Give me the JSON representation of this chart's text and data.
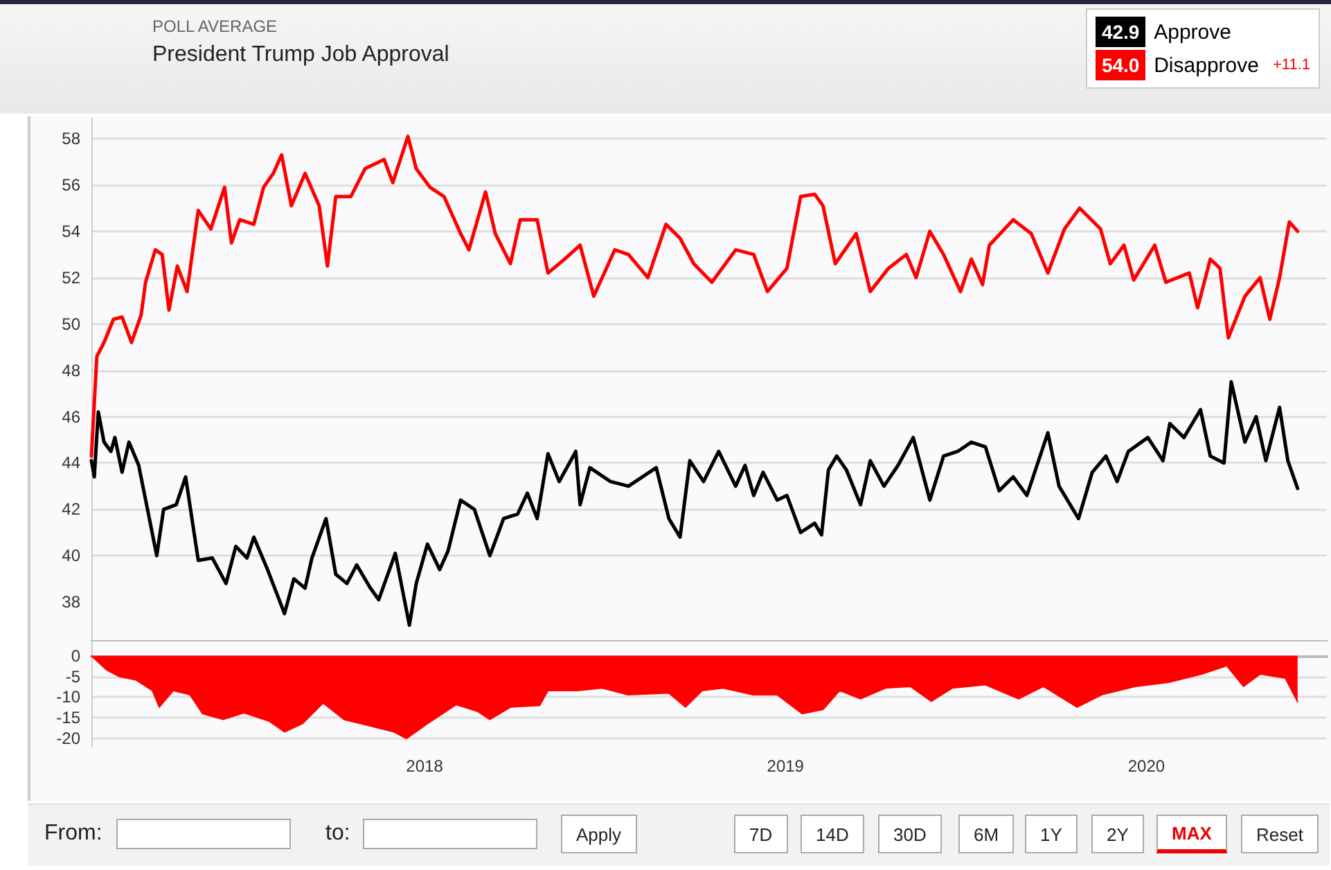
{
  "chart_data": [
    {
      "type": "line",
      "title": "President Trump Job Approval",
      "subtitle": "POLL AVERAGE",
      "annotations": [
        "42.9",
        "54.0",
        "+11.1"
      ],
      "xlim": [
        2017.077,
        2020.5
      ],
      "ylim": [
        36.3,
        58.9
      ],
      "yticks": [
        38,
        40,
        42,
        44,
        46,
        48,
        50,
        52,
        54,
        56,
        58
      ],
      "grid": "y",
      "legend": "top right",
      "tick_labels": "y",
      "line_style": "solid",
      "series": [
        {
          "name": "Approve",
          "color": "#000000",
          "x": [
            2017.077,
            2017.085,
            2017.096,
            2017.112,
            2017.131,
            2017.142,
            2017.162,
            2017.181,
            2017.208,
            2017.235,
            2017.258,
            2017.277,
            2017.312,
            2017.338,
            2017.373,
            2017.412,
            2017.45,
            2017.477,
            2017.508,
            2017.527,
            2017.565,
            2017.612,
            2017.638,
            2017.669,
            2017.688,
            2017.727,
            2017.754,
            2017.785,
            2017.812,
            2017.85,
            2017.873,
            2017.919,
            2017.958,
            2017.977,
            2018.008,
            2018.042,
            2018.065,
            2018.1,
            2018.138,
            2018.181,
            2018.219,
            2018.258,
            2018.285,
            2018.312,
            2018.342,
            2018.373,
            2018.419,
            2018.431,
            2018.458,
            2018.515,
            2018.565,
            2018.642,
            2018.677,
            2018.708,
            2018.735,
            2018.773,
            2018.815,
            2018.862,
            2018.888,
            2018.912,
            2018.938,
            2018.977,
            2019.004,
            2019.042,
            2019.081,
            2019.1,
            2019.119,
            2019.142,
            2019.169,
            2019.208,
            2019.235,
            2019.273,
            2019.312,
            2019.354,
            2019.4,
            2019.438,
            2019.477,
            2019.515,
            2019.554,
            2019.592,
            2019.631,
            2019.669,
            2019.727,
            2019.758,
            2019.812,
            2019.85,
            2019.888,
            2019.919,
            2019.95,
            2020.004,
            2020.046,
            2020.065,
            2020.104,
            2020.15,
            2020.177,
            2020.215,
            2020.235,
            2020.273,
            2020.304,
            2020.331,
            2020.369,
            2020.392,
            2020.419
          ],
          "values": [
            44.1,
            43.4,
            46.2,
            44.9,
            44.5,
            45.1,
            43.6,
            44.9,
            43.9,
            41.8,
            40.0,
            42.0,
            42.2,
            43.4,
            39.8,
            39.9,
            38.8,
            40.4,
            39.9,
            40.8,
            39.4,
            37.5,
            39.0,
            38.6,
            39.9,
            41.6,
            39.2,
            38.8,
            39.6,
            38.6,
            38.1,
            40.1,
            37.0,
            38.8,
            40.5,
            39.4,
            40.2,
            42.4,
            42.0,
            40.0,
            41.6,
            41.8,
            42.7,
            41.6,
            44.4,
            43.2,
            44.5,
            42.2,
            43.8,
            43.2,
            43.0,
            43.8,
            41.6,
            40.8,
            44.1,
            43.2,
            44.5,
            43.0,
            43.9,
            42.6,
            43.6,
            42.4,
            42.6,
            41.0,
            41.4,
            40.9,
            43.7,
            44.3,
            43.7,
            42.2,
            44.1,
            43.0,
            43.9,
            45.1,
            42.4,
            44.3,
            44.5,
            44.9,
            44.7,
            42.8,
            43.4,
            42.6,
            45.3,
            43.0,
            41.6,
            43.6,
            44.3,
            43.2,
            44.5,
            45.1,
            44.1,
            45.7,
            45.1,
            46.3,
            44.3,
            44.0,
            47.5,
            44.9,
            46.0,
            44.1,
            46.4,
            44.1,
            42.9
          ]
        },
        {
          "name": "Disapprove",
          "color": "#ff0000",
          "x": [
            2017.077,
            2017.092,
            2017.112,
            2017.138,
            2017.162,
            2017.188,
            2017.215,
            2017.227,
            2017.254,
            2017.273,
            2017.292,
            2017.315,
            2017.342,
            2017.373,
            2017.408,
            2017.446,
            2017.465,
            2017.488,
            2017.527,
            2017.554,
            2017.581,
            2017.604,
            2017.631,
            2017.669,
            2017.708,
            2017.731,
            2017.754,
            2017.796,
            2017.835,
            2017.888,
            2017.912,
            2017.954,
            2017.977,
            2018.015,
            2018.054,
            2018.1,
            2018.123,
            2018.169,
            2018.196,
            2018.238,
            2018.265,
            2018.312,
            2018.342,
            2018.388,
            2018.431,
            2018.469,
            2018.527,
            2018.565,
            2018.619,
            2018.669,
            2018.708,
            2018.746,
            2018.796,
            2018.862,
            2018.912,
            2018.95,
            2019.004,
            2019.042,
            2019.081,
            2019.104,
            2019.138,
            2019.196,
            2019.235,
            2019.285,
            2019.335,
            2019.362,
            2019.4,
            2019.438,
            2019.485,
            2019.515,
            2019.546,
            2019.565,
            2019.631,
            2019.681,
            2019.727,
            2019.773,
            2019.815,
            2019.873,
            2019.9,
            2019.938,
            2019.965,
            2020.023,
            2020.054,
            2020.119,
            2020.142,
            2020.177,
            2020.204,
            2020.227,
            2020.273,
            2020.315,
            2020.342,
            2020.369,
            2020.396,
            2020.419
          ],
          "values": [
            44.3,
            48.6,
            49.2,
            50.2,
            50.3,
            49.2,
            50.4,
            51.8,
            53.2,
            53.0,
            50.6,
            52.5,
            51.4,
            54.9,
            54.1,
            55.9,
            53.5,
            54.5,
            54.3,
            55.9,
            56.5,
            57.3,
            55.1,
            56.5,
            55.1,
            52.5,
            55.5,
            55.5,
            56.7,
            57.1,
            56.1,
            58.1,
            56.7,
            55.9,
            55.5,
            53.9,
            53.2,
            55.7,
            53.9,
            52.6,
            54.5,
            54.5,
            52.2,
            52.8,
            53.4,
            51.2,
            53.2,
            53.0,
            52.0,
            54.3,
            53.7,
            52.6,
            51.8,
            53.2,
            53.0,
            51.4,
            52.4,
            55.5,
            55.6,
            55.1,
            52.6,
            53.9,
            51.4,
            52.4,
            53.0,
            52.0,
            54.0,
            53.0,
            51.4,
            52.8,
            51.7,
            53.4,
            54.5,
            53.9,
            52.2,
            54.1,
            55.0,
            54.1,
            52.6,
            53.4,
            51.9,
            53.4,
            51.8,
            52.2,
            50.7,
            52.8,
            52.4,
            49.4,
            51.2,
            52.0,
            50.2,
            52.0,
            54.4,
            54.0
          ]
        }
      ]
    },
    {
      "type": "area",
      "xlim": [
        2017.077,
        2020.5
      ],
      "xticks": [
        2018,
        2019,
        2020
      ],
      "ylim": [
        -22,
        3.5
      ],
      "yticks": [
        0,
        -5,
        -10,
        -15,
        -20
      ],
      "grid": "y",
      "series": [
        {
          "color": "#ff0000",
          "x": [
            2017.077,
            2017.119,
            2017.154,
            2017.2,
            2017.246,
            2017.265,
            2017.304,
            2017.35,
            2017.385,
            2017.442,
            2017.5,
            2017.569,
            2017.612,
            2017.662,
            2017.719,
            2017.777,
            2017.869,
            2017.915,
            2017.95,
            2018.008,
            2018.088,
            2018.146,
            2018.181,
            2018.238,
            2018.319,
            2018.342,
            2018.423,
            2018.492,
            2018.562,
            2018.677,
            2018.723,
            2018.769,
            2018.827,
            2018.908,
            2018.977,
            2019.046,
            2019.104,
            2019.15,
            2019.208,
            2019.277,
            2019.346,
            2019.404,
            2019.462,
            2019.554,
            2019.646,
            2019.715,
            2019.808,
            2019.877,
            2019.969,
            2020.062,
            2020.154,
            2020.223,
            2020.269,
            2020.315,
            2020.385,
            2020.419
          ],
          "values": [
            0,
            -3.4,
            -5,
            -5.8,
            -8.4,
            -12.4,
            -8.4,
            -9.4,
            -14,
            -15.4,
            -13.8,
            -15.8,
            -18.4,
            -16.4,
            -11.4,
            -15.4,
            -17.4,
            -18.4,
            -20,
            -16.4,
            -11.8,
            -13.4,
            -15.4,
            -12.4,
            -12,
            -8.4,
            -8.4,
            -7.8,
            -9.4,
            -9,
            -12.4,
            -8.4,
            -7.8,
            -9.4,
            -9.4,
            -14,
            -13,
            -8.4,
            -10.4,
            -7.8,
            -7.4,
            -11,
            -7.8,
            -7,
            -10.4,
            -7.4,
            -12.4,
            -9.4,
            -7.4,
            -6.4,
            -4.4,
            -2.4,
            -7.4,
            -4.4,
            -5.4,
            -11.1
          ]
        }
      ]
    },
    {
      "type": "other",
      "annotations": [
        "From:",
        "to:",
        "Apply",
        "7D",
        "14D",
        "30D",
        "6M",
        "1Y",
        "2Y",
        "MAX",
        "Reset"
      ]
    }
  ]
}
